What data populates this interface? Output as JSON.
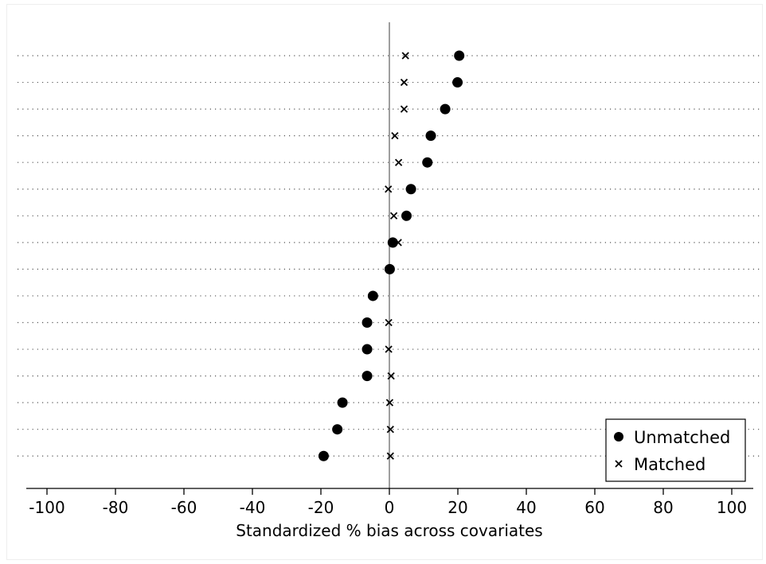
{
  "chart_data": {
    "type": "scatter",
    "title": "",
    "xlabel": "Standardized % bias across covariates",
    "ylabel": "",
    "xlim": [
      -105,
      106
    ],
    "xticks": [
      -100,
      -80,
      -60,
      -40,
      -20,
      0,
      20,
      40,
      60,
      80,
      100
    ],
    "grid": true,
    "legend_position": "bottom-right",
    "rows": 16,
    "series": [
      {
        "name": "Unmatched",
        "marker": "circle",
        "values": [
          20.4,
          19.9,
          16.3,
          12.1,
          11.1,
          6.3,
          5.0,
          1.0,
          0.1,
          -4.8,
          -6.5,
          -6.5,
          -6.5,
          -13.7,
          -15.2,
          -19.2
        ]
      },
      {
        "name": "Matched",
        "marker": "x",
        "values": [
          4.7,
          4.3,
          4.3,
          1.6,
          2.7,
          -0.3,
          1.3,
          2.6,
          null,
          null,
          -0.2,
          -0.2,
          0.5,
          0.1,
          0.3,
          0.3
        ]
      }
    ]
  }
}
